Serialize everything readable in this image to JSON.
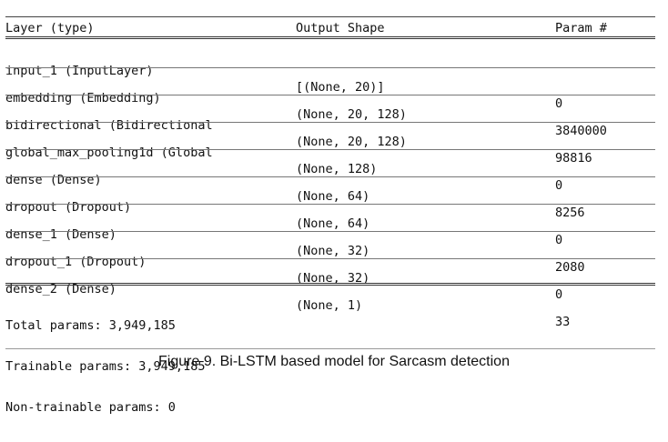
{
  "header": {
    "layer": "Layer (type)",
    "shape": "Output Shape",
    "param": "Param #"
  },
  "rows": [
    {
      "layer": "input_1 (InputLayer)",
      "shape": "[(None, 20)]",
      "param": "0"
    },
    {
      "layer": "embedding (Embedding)",
      "shape": "(None, 20, 128)",
      "param": "3840000"
    },
    {
      "layer": "bidirectional (Bidirectional",
      "shape": "(None, 20, 128)",
      "param": "98816"
    },
    {
      "layer": "global_max_pooling1d (Global",
      "shape": "(None, 128)",
      "param": "0"
    },
    {
      "layer": "dense (Dense)",
      "shape": "(None, 64)",
      "param": "8256"
    },
    {
      "layer": "dropout (Dropout)",
      "shape": "(None, 64)",
      "param": "0"
    },
    {
      "layer": "dense_1 (Dense)",
      "shape": "(None, 32)",
      "param": "2080"
    },
    {
      "layer": "dropout_1 (Dropout)",
      "shape": "(None, 32)",
      "param": "0"
    },
    {
      "layer": "dense_2 (Dense)",
      "shape": "(None, 1)",
      "param": "33"
    }
  ],
  "totals": {
    "total": "Total params: 3,949,185",
    "trainable": "Trainable params: 3,949,185",
    "non_trainable": "Non-trainable params: 0"
  },
  "caption": "Figure 9. Bi-LSTM based model for Sarcasm detection"
}
